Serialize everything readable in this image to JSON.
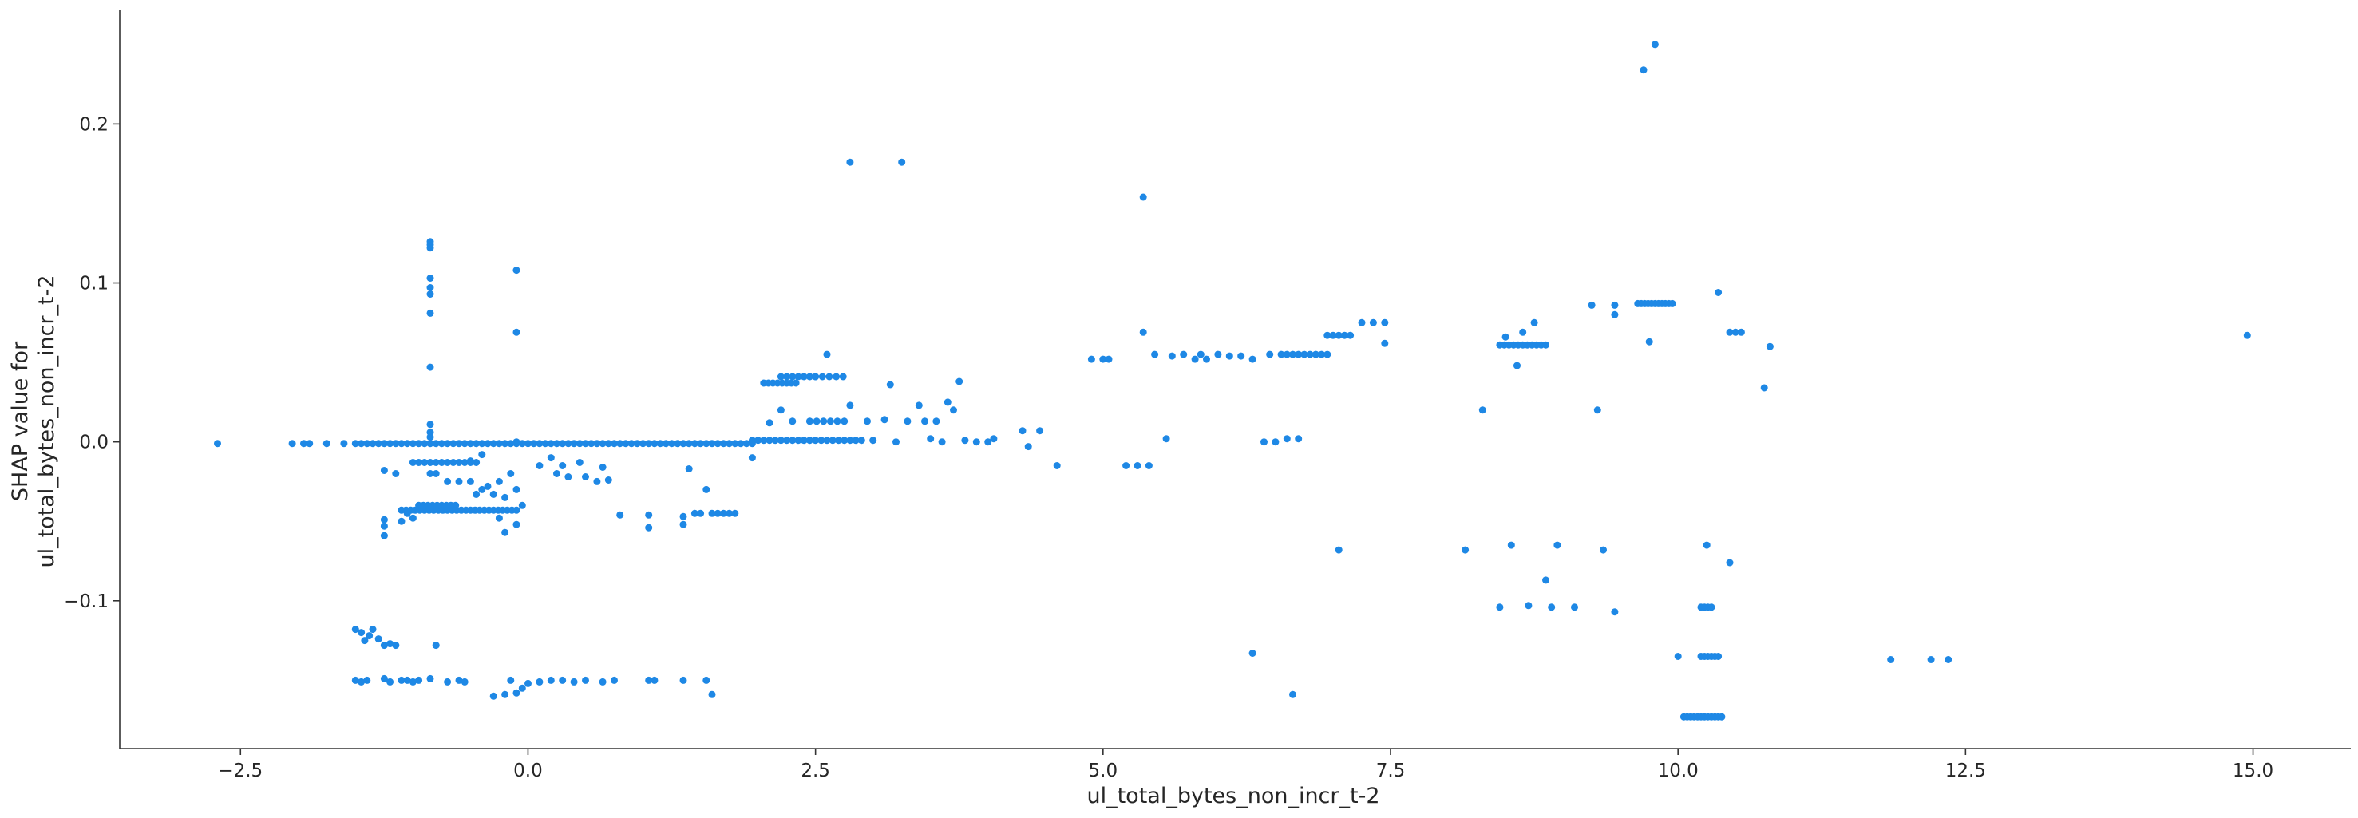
{
  "chart_data": {
    "type": "scatter",
    "title": "",
    "xlabel": "ul_total_bytes_non_incr_t-2",
    "ylabel_lines": [
      "SHAP value for",
      "ul_total_bytes_non_incr_t-2"
    ],
    "xlim": [
      -3.55,
      15.85
    ],
    "ylim": [
      -0.193,
      0.272
    ],
    "x_ticks": [
      {
        "value": -2.5,
        "label": "−2.5"
      },
      {
        "value": 0.0,
        "label": "0.0"
      },
      {
        "value": 2.5,
        "label": "2.5"
      },
      {
        "value": 5.0,
        "label": "5.0"
      },
      {
        "value": 7.5,
        "label": "7.5"
      },
      {
        "value": 10.0,
        "label": "10.0"
      },
      {
        "value": 12.5,
        "label": "12.5"
      },
      {
        "value": 15.0,
        "label": "15.0"
      }
    ],
    "y_ticks": [
      {
        "value": -0.1,
        "label": "−0.1"
      },
      {
        "value": 0.0,
        "label": "0.0"
      },
      {
        "value": 0.1,
        "label": "0.1"
      },
      {
        "value": 0.2,
        "label": "0.2"
      }
    ],
    "grid": false,
    "point_color": "#1e88e5",
    "dense_runs": [
      {
        "x_start": -1.5,
        "x_end": 1.95,
        "y": -0.001,
        "step": 0.05
      },
      {
        "x_start": -1.1,
        "x_end": -0.1,
        "y": -0.043,
        "step": 0.04
      },
      {
        "x_start": -0.95,
        "x_end": -0.6,
        "y": -0.04,
        "step": 0.04
      },
      {
        "x_start": -1.0,
        "x_end": -0.45,
        "y": -0.013,
        "step": 0.05
      },
      {
        "x_start": 1.6,
        "x_end": 1.8,
        "y": -0.045,
        "step": 0.05
      },
      {
        "x_start": 1.95,
        "x_end": 2.9,
        "y": 0.001,
        "step": 0.05
      },
      {
        "x_start": 2.05,
        "x_end": 2.35,
        "y": 0.037,
        "step": 0.04
      },
      {
        "x_start": 2.2,
        "x_end": 2.5,
        "y": 0.041,
        "step": 0.05
      },
      {
        "x_start": 2.5,
        "x_end": 2.75,
        "y": 0.041,
        "step": 0.06
      },
      {
        "x_start": 2.45,
        "x_end": 2.75,
        "y": 0.013,
        "step": 0.06
      },
      {
        "x_start": 6.55,
        "x_end": 6.95,
        "y": 0.055,
        "step": 0.05
      },
      {
        "x_start": 6.95,
        "x_end": 7.15,
        "y": 0.067,
        "step": 0.05
      },
      {
        "x_start": 8.45,
        "x_end": 8.85,
        "y": 0.061,
        "step": 0.04
      },
      {
        "x_start": 9.65,
        "x_end": 9.95,
        "y": 0.087,
        "step": 0.03
      },
      {
        "x_start": 10.05,
        "x_end": 10.4,
        "y": -0.173,
        "step": 0.03
      },
      {
        "x_start": 10.2,
        "x_end": 10.35,
        "y": -0.135,
        "step": 0.03
      },
      {
        "x_start": 10.2,
        "x_end": 10.3,
        "y": -0.104,
        "step": 0.03
      }
    ],
    "points": [
      [
        -2.7,
        -0.001
      ],
      [
        -2.05,
        -0.001
      ],
      [
        -1.95,
        -0.001
      ],
      [
        -1.9,
        -0.001
      ],
      [
        -1.75,
        -0.001
      ],
      [
        -1.6,
        -0.001
      ],
      [
        -1.5,
        -0.118
      ],
      [
        -1.45,
        -0.12
      ],
      [
        -1.42,
        -0.125
      ],
      [
        -1.38,
        -0.122
      ],
      [
        -1.35,
        -0.118
      ],
      [
        -1.3,
        -0.124
      ],
      [
        -1.25,
        -0.128
      ],
      [
        -1.2,
        -0.127
      ],
      [
        -1.15,
        -0.128
      ],
      [
        -0.8,
        -0.128
      ],
      [
        -1.5,
        -0.15
      ],
      [
        -1.45,
        -0.151
      ],
      [
        -1.4,
        -0.15
      ],
      [
        -1.25,
        -0.149
      ],
      [
        -1.2,
        -0.151
      ],
      [
        -1.1,
        -0.15
      ],
      [
        -1.05,
        -0.15
      ],
      [
        -1.0,
        -0.151
      ],
      [
        -0.95,
        -0.15
      ],
      [
        -0.85,
        -0.149
      ],
      [
        -0.7,
        -0.151
      ],
      [
        -0.6,
        -0.15
      ],
      [
        -0.55,
        -0.151
      ],
      [
        -0.3,
        -0.16
      ],
      [
        -0.2,
        -0.159
      ],
      [
        -0.1,
        -0.158
      ],
      [
        -0.05,
        -0.155
      ],
      [
        0.0,
        -0.152
      ],
      [
        -0.15,
        -0.15
      ],
      [
        0.1,
        -0.151
      ],
      [
        0.2,
        -0.15
      ],
      [
        0.3,
        -0.15
      ],
      [
        0.4,
        -0.151
      ],
      [
        0.5,
        -0.15
      ],
      [
        0.65,
        -0.151
      ],
      [
        0.75,
        -0.15
      ],
      [
        1.05,
        -0.15
      ],
      [
        1.1,
        -0.15
      ],
      [
        1.35,
        -0.15
      ],
      [
        1.55,
        -0.15
      ],
      [
        1.6,
        -0.159
      ],
      [
        -1.25,
        -0.059
      ],
      [
        -1.25,
        -0.049
      ],
      [
        -1.25,
        -0.053
      ],
      [
        -1.1,
        -0.05
      ],
      [
        -1.05,
        -0.045
      ],
      [
        -1.0,
        -0.048
      ],
      [
        -0.85,
        0.126
      ],
      [
        -0.85,
        0.124
      ],
      [
        -0.85,
        0.122
      ],
      [
        -0.85,
        0.103
      ],
      [
        -0.85,
        0.097
      ],
      [
        -0.85,
        0.093
      ],
      [
        -0.85,
        0.081
      ],
      [
        -0.85,
        0.047
      ],
      [
        -0.85,
        0.011
      ],
      [
        -0.85,
        0.006
      ],
      [
        -0.85,
        0.003
      ],
      [
        -0.1,
        0.108
      ],
      [
        -0.1,
        0.069
      ],
      [
        -0.1,
        0.0
      ],
      [
        -0.85,
        -0.02
      ],
      [
        -0.8,
        -0.02
      ],
      [
        -0.7,
        -0.025
      ],
      [
        -0.6,
        -0.025
      ],
      [
        -0.5,
        -0.025
      ],
      [
        -0.45,
        -0.033
      ],
      [
        -0.4,
        -0.03
      ],
      [
        -0.35,
        -0.028
      ],
      [
        -0.3,
        -0.033
      ],
      [
        -0.25,
        -0.025
      ],
      [
        -0.2,
        -0.035
      ],
      [
        -0.15,
        -0.02
      ],
      [
        -0.1,
        -0.03
      ],
      [
        -0.05,
        -0.04
      ],
      [
        -0.2,
        -0.057
      ],
      [
        -0.25,
        -0.048
      ],
      [
        -0.1,
        -0.052
      ],
      [
        -1.25,
        -0.018
      ],
      [
        -1.15,
        -0.02
      ],
      [
        -0.5,
        -0.012
      ],
      [
        -0.4,
        -0.008
      ],
      [
        0.1,
        -0.015
      ],
      [
        0.2,
        -0.01
      ],
      [
        0.3,
        -0.015
      ],
      [
        0.35,
        -0.022
      ],
      [
        0.45,
        -0.013
      ],
      [
        0.5,
        -0.022
      ],
      [
        0.6,
        -0.025
      ],
      [
        0.65,
        -0.016
      ],
      [
        0.25,
        -0.02
      ],
      [
        0.7,
        -0.024
      ],
      [
        0.8,
        -0.046
      ],
      [
        1.05,
        -0.046
      ],
      [
        1.05,
        -0.054
      ],
      [
        1.35,
        -0.047
      ],
      [
        1.4,
        -0.017
      ],
      [
        1.45,
        -0.045
      ],
      [
        1.5,
        -0.045
      ],
      [
        1.55,
        -0.03
      ],
      [
        1.35,
        -0.052
      ],
      [
        1.95,
        -0.01
      ],
      [
        2.1,
        0.012
      ],
      [
        2.2,
        0.02
      ],
      [
        2.3,
        0.013
      ],
      [
        2.6,
        0.055
      ],
      [
        2.8,
        0.176
      ],
      [
        3.25,
        0.176
      ],
      [
        2.8,
        0.023
      ],
      [
        2.95,
        0.013
      ],
      [
        3.0,
        0.001
      ],
      [
        3.1,
        0.014
      ],
      [
        3.15,
        0.036
      ],
      [
        3.2,
        0.0
      ],
      [
        3.3,
        0.013
      ],
      [
        3.4,
        0.023
      ],
      [
        3.45,
        0.013
      ],
      [
        3.5,
        0.002
      ],
      [
        3.55,
        0.013
      ],
      [
        3.6,
        0.0
      ],
      [
        3.65,
        0.025
      ],
      [
        3.7,
        0.02
      ],
      [
        3.75,
        0.038
      ],
      [
        3.8,
        0.001
      ],
      [
        3.9,
        0.0
      ],
      [
        4.0,
        0.0
      ],
      [
        4.05,
        0.002
      ],
      [
        4.3,
        0.007
      ],
      [
        4.35,
        -0.003
      ],
      [
        4.45,
        0.007
      ],
      [
        4.6,
        -0.015
      ],
      [
        4.9,
        0.052
      ],
      [
        5.0,
        0.052
      ],
      [
        5.05,
        0.052
      ],
      [
        5.2,
        -0.015
      ],
      [
        5.3,
        -0.015
      ],
      [
        5.35,
        0.154
      ],
      [
        5.35,
        0.069
      ],
      [
        5.4,
        -0.015
      ],
      [
        5.45,
        0.055
      ],
      [
        5.55,
        0.002
      ],
      [
        5.6,
        0.054
      ],
      [
        5.7,
        0.055
      ],
      [
        5.8,
        0.052
      ],
      [
        5.85,
        0.055
      ],
      [
        5.9,
        0.052
      ],
      [
        6.0,
        0.055
      ],
      [
        6.1,
        0.054
      ],
      [
        6.2,
        0.054
      ],
      [
        6.3,
        -0.133
      ],
      [
        6.3,
        0.052
      ],
      [
        6.4,
        0.0
      ],
      [
        6.45,
        0.055
      ],
      [
        6.5,
        0.0
      ],
      [
        6.6,
        0.002
      ],
      [
        6.65,
        -0.159
      ],
      [
        6.7,
        0.002
      ],
      [
        7.05,
        -0.068
      ],
      [
        7.25,
        0.075
      ],
      [
        7.35,
        0.075
      ],
      [
        7.45,
        0.075
      ],
      [
        7.45,
        0.062
      ],
      [
        8.15,
        -0.068
      ],
      [
        8.3,
        0.02
      ],
      [
        8.45,
        -0.104
      ],
      [
        8.5,
        0.066
      ],
      [
        8.55,
        -0.065
      ],
      [
        8.6,
        0.048
      ],
      [
        8.65,
        0.069
      ],
      [
        8.7,
        -0.103
      ],
      [
        8.75,
        0.075
      ],
      [
        8.85,
        -0.087
      ],
      [
        8.9,
        -0.104
      ],
      [
        8.95,
        -0.065
      ],
      [
        9.1,
        -0.104
      ],
      [
        9.25,
        0.086
      ],
      [
        9.3,
        0.02
      ],
      [
        9.35,
        -0.068
      ],
      [
        9.45,
        -0.107
      ],
      [
        9.45,
        0.086
      ],
      [
        9.45,
        0.08
      ],
      [
        9.7,
        0.234
      ],
      [
        9.8,
        0.25
      ],
      [
        9.75,
        0.063
      ],
      [
        10.0,
        -0.135
      ],
      [
        10.25,
        -0.065
      ],
      [
        10.35,
        0.094
      ],
      [
        10.45,
        0.069
      ],
      [
        10.5,
        0.069
      ],
      [
        10.55,
        0.069
      ],
      [
        10.45,
        -0.076
      ],
      [
        10.75,
        0.034
      ],
      [
        10.8,
        0.06
      ],
      [
        11.85,
        -0.137
      ],
      [
        12.2,
        -0.137
      ],
      [
        12.35,
        -0.137
      ],
      [
        14.95,
        0.067
      ]
    ]
  }
}
